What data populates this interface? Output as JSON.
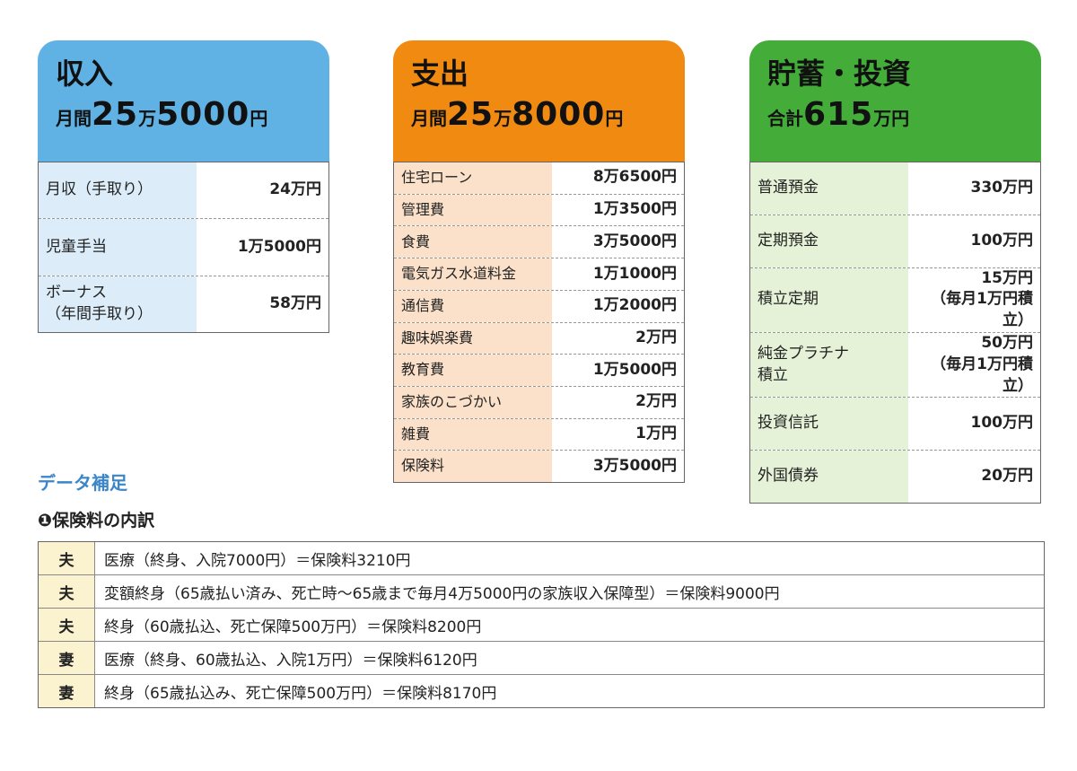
{
  "cards": [
    {
      "title": "収入",
      "amount": [
        "月間",
        "25",
        "万",
        "5000",
        "円"
      ],
      "rows": [
        {
          "label": "月収（手取り）",
          "value": "24万円"
        },
        {
          "label": "児童手当",
          "value": "1万5000円"
        },
        {
          "label": "ボーナス\n（年間手取り）",
          "value": "58万円"
        }
      ]
    },
    {
      "title": "支出",
      "amount": [
        "月間",
        "25",
        "万",
        "8000",
        "円"
      ],
      "rows": [
        {
          "label": "住宅ローン",
          "value": "8万6500円"
        },
        {
          "label": "管理費",
          "value": "1万3500円"
        },
        {
          "label": "食費",
          "value": "3万5000円"
        },
        {
          "label": "電気ガス水道料金",
          "value": "1万1000円"
        },
        {
          "label": "通信費",
          "value": "1万2000円"
        },
        {
          "label": "趣味娯楽費",
          "value": "2万円"
        },
        {
          "label": "教育費",
          "value": "1万5000円"
        },
        {
          "label": "家族のこづかい",
          "value": "2万円"
        },
        {
          "label": "雑費",
          "value": "1万円"
        },
        {
          "label": "保険料",
          "value": "3万5000円"
        }
      ]
    },
    {
      "title": "貯蓄・投資",
      "amount": [
        "合計",
        "615",
        "万円"
      ],
      "rows": [
        {
          "label": "普通預金",
          "value": "330万円"
        },
        {
          "label": "定期預金",
          "value": "100万円"
        },
        {
          "label": "積立定期",
          "value": "15万円\n（毎月1万円積立）"
        },
        {
          "label": "純金プラチナ\n積立",
          "value": "50万円\n（毎月1万円積立）"
        },
        {
          "label": "投資信託",
          "value": "100万円"
        },
        {
          "label": "外国債券",
          "value": "20万円"
        }
      ]
    }
  ],
  "notes": {
    "heading": "データ補足",
    "subheading": "❶保険料の内訳",
    "rows": [
      {
        "who": "夫",
        "text": "医療（終身、入院7000円）＝保険料3210円"
      },
      {
        "who": "夫",
        "text": "変額終身（65歳払い済み、死亡時～65歳まで毎月4万5000円の家族収入保障型）＝保険料9000円"
      },
      {
        "who": "夫",
        "text": "終身（60歳払込、死亡保障500万円）＝保険料8200円"
      },
      {
        "who": "妻",
        "text": "医療（終身、60歳払込、入院1万円）＝保険料6120円"
      },
      {
        "who": "妻",
        "text": "終身（65歳払込み、死亡保障500万円）＝保険料8170円"
      }
    ]
  }
}
